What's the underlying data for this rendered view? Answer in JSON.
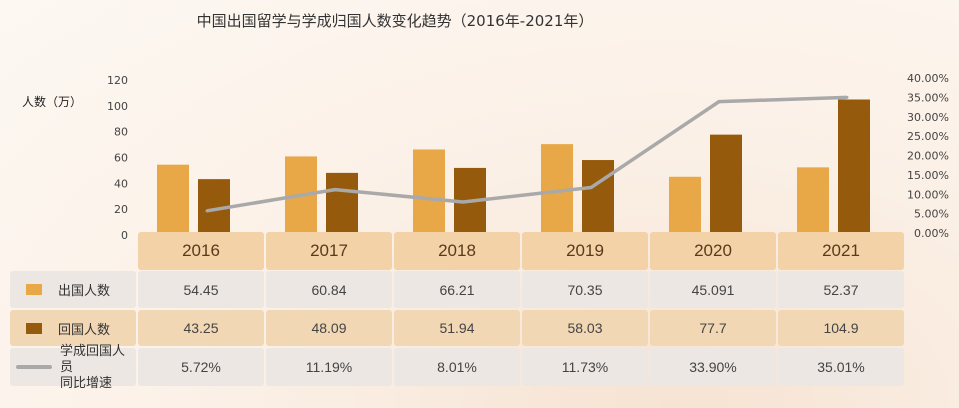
{
  "title": "中国出国留学与学成归国人数变化趋势（2016年-2021年）",
  "unit_label": "人数（万）",
  "colors": {
    "out": "#e8a848",
    "ret": "#955a0c",
    "rate": "#a9a9a9"
  },
  "chart_data": {
    "type": "bar",
    "title": "中国出国留学与学成归国人数变化趋势（2016年-2021年）",
    "ylabel": "人数（万）",
    "ylim": [
      0,
      120
    ],
    "y2lim": [
      0,
      0.4
    ],
    "y_ticks": [
      "0",
      "20",
      "40",
      "60",
      "80",
      "100",
      "120"
    ],
    "y2_ticks": [
      "0.00%",
      "5.00%",
      "10.00%",
      "15.00%",
      "20.00%",
      "25.00%",
      "30.00%",
      "35.00%",
      "40.00%"
    ],
    "categories": [
      "2016",
      "2017",
      "2018",
      "2019",
      "2020",
      "2021"
    ],
    "series": [
      {
        "name": "出国人数",
        "type": "bar",
        "values": [
          54.45,
          60.84,
          66.21,
          70.35,
          45.091,
          52.37
        ],
        "labels": [
          "54.45",
          "60.84",
          "66.21",
          "70.35",
          "45.091",
          "52.37"
        ]
      },
      {
        "name": "回国人数",
        "type": "bar",
        "values": [
          43.25,
          48.09,
          51.94,
          58.03,
          77.7,
          104.9
        ],
        "labels": [
          "43.25",
          "48.09",
          "51.94",
          "58.03",
          "77.7",
          "104.9"
        ]
      },
      {
        "name": "学成回国人员同比增速",
        "name_lines": [
          "学成回国人员",
          "同比增速"
        ],
        "type": "line",
        "axis": "right",
        "values": [
          0.0572,
          0.1119,
          0.0801,
          0.1173,
          0.339,
          0.3501
        ],
        "labels": [
          "5.72%",
          "11.19%",
          "8.01%",
          "11.73%",
          "33.90%",
          "35.01%"
        ]
      }
    ]
  }
}
